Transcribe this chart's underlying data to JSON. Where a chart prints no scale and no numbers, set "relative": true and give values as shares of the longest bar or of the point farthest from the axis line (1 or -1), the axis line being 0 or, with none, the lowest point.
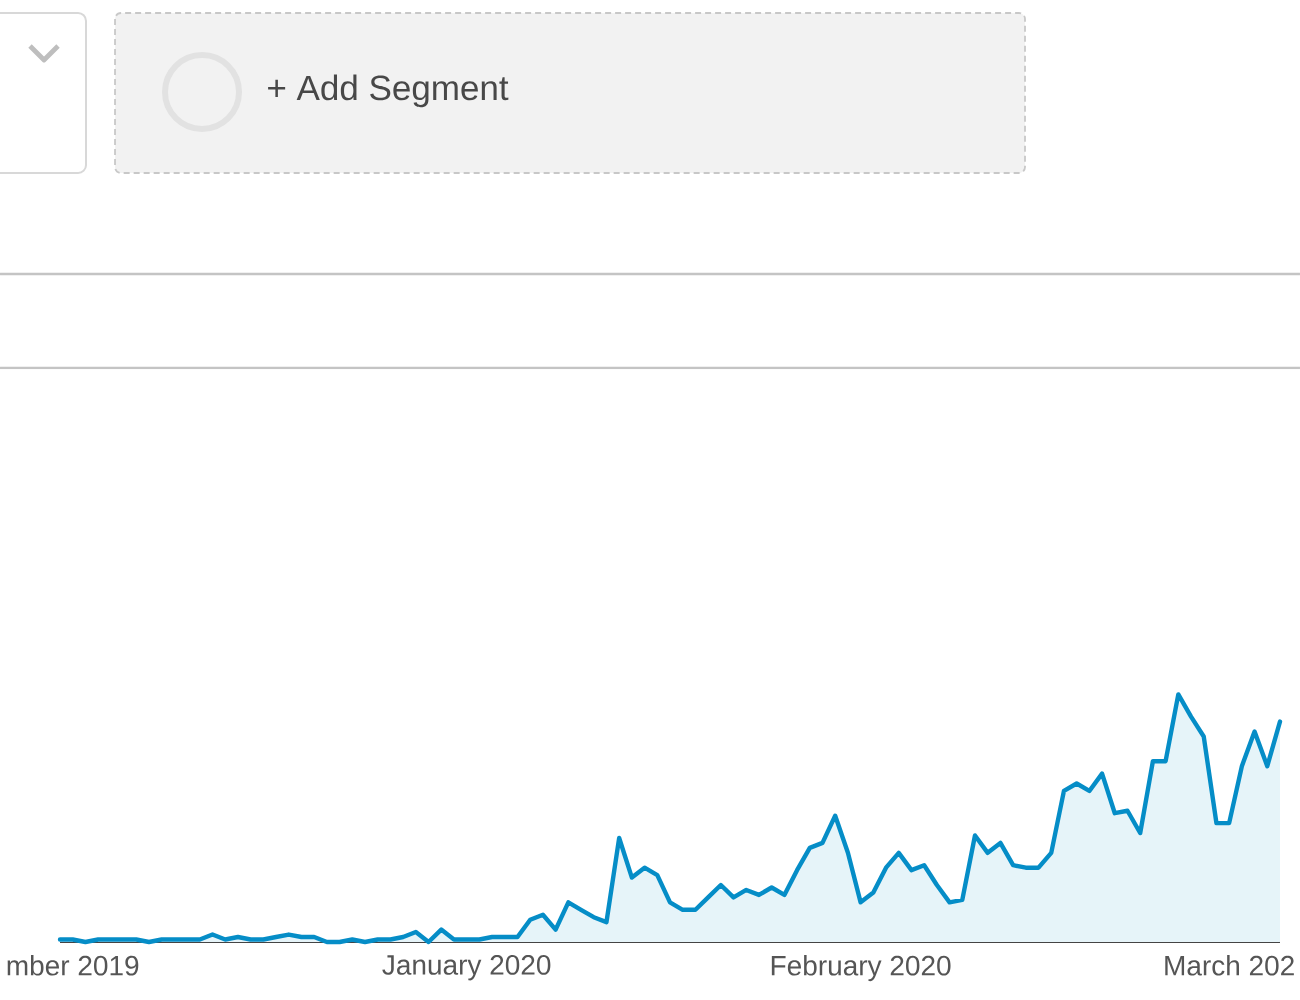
{
  "chart_data": {
    "type": "area",
    "relative": true,
    "color": "#058dc7",
    "annotations": [
      "+ Add Segment"
    ],
    "xlim": [
      "2019-11-30",
      "2020-03-05"
    ],
    "xticks": [
      {
        "value": "2019-12-01",
        "label": "mber 2019"
      },
      {
        "value": "2020-01-01",
        "label": "January 2020"
      },
      {
        "value": "2020-02-01",
        "label": "February 2020"
      },
      {
        "value": "2020-03-01",
        "label": "March 202"
      }
    ],
    "x": [
      "2019-11-30",
      "2019-12-01",
      "2019-12-02",
      "2019-12-03",
      "2019-12-04",
      "2019-12-05",
      "2019-12-06",
      "2019-12-07",
      "2019-12-08",
      "2019-12-09",
      "2019-12-10",
      "2019-12-11",
      "2019-12-12",
      "2019-12-13",
      "2019-12-14",
      "2019-12-15",
      "2019-12-16",
      "2019-12-17",
      "2019-12-18",
      "2019-12-19",
      "2019-12-20",
      "2019-12-21",
      "2019-12-22",
      "2019-12-23",
      "2019-12-24",
      "2019-12-25",
      "2019-12-26",
      "2019-12-27",
      "2019-12-28",
      "2019-12-29",
      "2019-12-30",
      "2019-12-31",
      "2020-01-01",
      "2020-01-02",
      "2020-01-03",
      "2020-01-04",
      "2020-01-05",
      "2020-01-06",
      "2020-01-07",
      "2020-01-08",
      "2020-01-09",
      "2020-01-10",
      "2020-01-11",
      "2020-01-12",
      "2020-01-13",
      "2020-01-14",
      "2020-01-15",
      "2020-01-16",
      "2020-01-17",
      "2020-01-18",
      "2020-01-19",
      "2020-01-20",
      "2020-01-21",
      "2020-01-22",
      "2020-01-23",
      "2020-01-24",
      "2020-01-25",
      "2020-01-26",
      "2020-01-27",
      "2020-01-28",
      "2020-01-29",
      "2020-01-30",
      "2020-01-31",
      "2020-02-01",
      "2020-02-02",
      "2020-02-03",
      "2020-02-04",
      "2020-02-05",
      "2020-02-06",
      "2020-02-07",
      "2020-02-08",
      "2020-02-09",
      "2020-02-10",
      "2020-02-11",
      "2020-02-12",
      "2020-02-13",
      "2020-02-14",
      "2020-02-15",
      "2020-02-16",
      "2020-02-17",
      "2020-02-18",
      "2020-02-19",
      "2020-02-20",
      "2020-02-21",
      "2020-02-22",
      "2020-02-23",
      "2020-02-24",
      "2020-02-25",
      "2020-02-26",
      "2020-02-27",
      "2020-02-28",
      "2020-02-29",
      "2020-03-01",
      "2020-03-02",
      "2020-03-03",
      "2020-03-04",
      "2020-03-05"
    ],
    "values": [
      0.01,
      0.01,
      0,
      0.01,
      0.01,
      0.01,
      0.01,
      0,
      0.01,
      0.01,
      0.01,
      0.01,
      0.03,
      0.01,
      0.02,
      0.01,
      0.01,
      0.02,
      0.03,
      0.02,
      0.02,
      0,
      0,
      0.01,
      0,
      0.01,
      0.01,
      0.02,
      0.04,
      0,
      0.05,
      0.01,
      0.01,
      0.01,
      0.02,
      0.02,
      0.02,
      0.09,
      0.11,
      0.05,
      0.16,
      0.13,
      0.1,
      0.08,
      0.42,
      0.26,
      0.3,
      0.27,
      0.16,
      0.13,
      0.13,
      0.18,
      0.23,
      0.18,
      0.21,
      0.19,
      0.22,
      0.19,
      0.29,
      0.38,
      0.4,
      0.51,
      0.36,
      0.16,
      0.2,
      0.3,
      0.36,
      0.29,
      0.31,
      0.23,
      0.16,
      0.17,
      0.43,
      0.36,
      0.4,
      0.31,
      0.3,
      0.3,
      0.36,
      0.61,
      0.64,
      0.61,
      0.68,
      0.52,
      0.53,
      0.44,
      0.73,
      0.73,
      1,
      0.91,
      0.83,
      0.48,
      0.48,
      0.71,
      0.85,
      0.71,
      0.89
    ]
  }
}
